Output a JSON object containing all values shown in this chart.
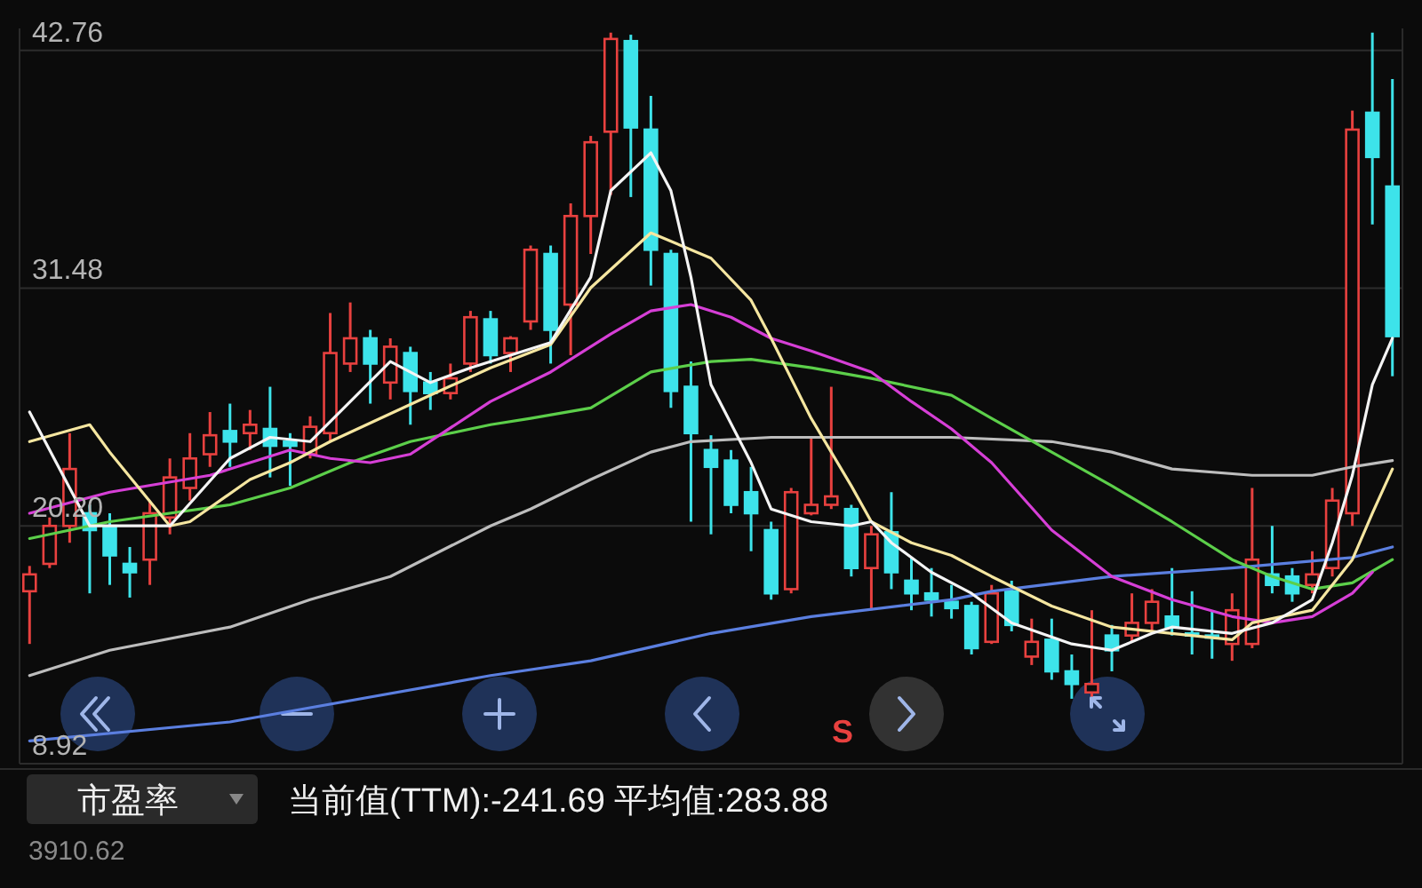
{
  "chart_data": {
    "type": "candlestick",
    "categories": [
      null,
      null,
      null,
      null,
      null,
      null,
      null,
      null,
      null,
      null,
      null,
      null,
      null,
      null,
      null,
      null,
      null,
      null,
      null,
      null,
      null,
      null,
      null,
      null,
      null,
      null,
      null,
      null,
      null,
      null,
      null,
      null,
      null,
      null,
      null,
      null,
      null,
      null,
      null,
      null,
      null,
      null,
      null,
      null,
      null,
      null,
      null,
      null,
      null,
      null,
      null,
      null,
      null,
      null,
      null,
      null,
      null,
      null,
      null,
      null,
      null,
      null,
      null,
      null,
      null,
      null,
      null,
      null,
      null
    ],
    "ohlc": [
      [
        17.1,
        18.3,
        14.6,
        17.9
      ],
      [
        18.4,
        20.6,
        18.2,
        20.2
      ],
      [
        20.2,
        24.6,
        19.4,
        22.9
      ],
      [
        20.8,
        21.2,
        17.0,
        20.0
      ],
      [
        20.2,
        20.8,
        17.4,
        18.8
      ],
      [
        18.4,
        19.2,
        16.8,
        18.0
      ],
      [
        18.6,
        21.4,
        17.4,
        20.8
      ],
      [
        20.6,
        23.4,
        19.8,
        22.5
      ],
      [
        22.0,
        24.6,
        21.4,
        23.4
      ],
      [
        23.6,
        25.6,
        23.0,
        24.5
      ],
      [
        24.7,
        26.0,
        23.0,
        24.2
      ],
      [
        24.6,
        25.7,
        23.8,
        25.0
      ],
      [
        24.8,
        26.8,
        22.5,
        24.0
      ],
      [
        24.2,
        24.6,
        22.1,
        24.0
      ],
      [
        23.6,
        25.4,
        23.4,
        24.9
      ],
      [
        24.6,
        30.3,
        24.2,
        28.4
      ],
      [
        27.9,
        30.8,
        27.5,
        29.1
      ],
      [
        29.1,
        29.5,
        26.0,
        27.9
      ],
      [
        27.0,
        29.1,
        26.2,
        28.7
      ],
      [
        28.4,
        28.7,
        25.0,
        26.6
      ],
      [
        27.0,
        27.5,
        25.7,
        26.5
      ],
      [
        26.5,
        27.9,
        26.2,
        27.2
      ],
      [
        27.9,
        30.4,
        27.5,
        30.1
      ],
      [
        30.0,
        30.4,
        27.9,
        28.3
      ],
      [
        28.4,
        29.2,
        27.5,
        29.1
      ],
      [
        29.9,
        33.5,
        29.5,
        33.3
      ],
      [
        33.1,
        33.5,
        27.9,
        29.5
      ],
      [
        30.7,
        35.5,
        28.3,
        34.9
      ],
      [
        34.9,
        38.7,
        33.1,
        38.4
      ],
      [
        38.9,
        43.6,
        35.9,
        43.3
      ],
      [
        43.2,
        43.5,
        35.8,
        39.1
      ],
      [
        39.0,
        40.6,
        31.6,
        33.3
      ],
      [
        33.1,
        33.3,
        25.8,
        26.6
      ],
      [
        26.8,
        28.0,
        20.4,
        24.6
      ],
      [
        23.8,
        24.5,
        19.8,
        23.0
      ],
      [
        23.3,
        23.8,
        20.8,
        21.2
      ],
      [
        21.8,
        23.0,
        19.0,
        20.8
      ],
      [
        20.0,
        20.4,
        16.7,
        17.0
      ],
      [
        17.2,
        22.0,
        17.0,
        21.8
      ],
      [
        20.8,
        24.4,
        20.7,
        21.2
      ],
      [
        21.2,
        26.8,
        21.0,
        21.6
      ],
      [
        21.0,
        21.2,
        17.8,
        18.2
      ],
      [
        18.2,
        20.2,
        16.2,
        19.8
      ],
      [
        19.9,
        21.8,
        17.2,
        18.0
      ],
      [
        17.6,
        18.7,
        16.2,
        17.0
      ],
      [
        17.0,
        18.2,
        15.9,
        16.7
      ],
      [
        16.6,
        17.4,
        15.8,
        16.3
      ],
      [
        16.4,
        16.6,
        14.1,
        14.4
      ],
      [
        14.7,
        17.4,
        14.6,
        17.0
      ],
      [
        17.1,
        17.6,
        15.2,
        15.5
      ],
      [
        14.0,
        15.8,
        13.6,
        14.7
      ],
      [
        14.8,
        15.8,
        12.9,
        13.3
      ],
      [
        13.3,
        14.1,
        12.0,
        12.7
      ],
      [
        12.3,
        16.2,
        12.1,
        12.7
      ],
      [
        15.0,
        15.5,
        13.3,
        14.3
      ],
      [
        15.0,
        17.0,
        14.7,
        15.6
      ],
      [
        15.6,
        17.2,
        15.2,
        16.6
      ],
      [
        15.9,
        18.2,
        15.0,
        15.4
      ],
      [
        15.1,
        17.1,
        14.1,
        15.0
      ],
      [
        15.0,
        16.2,
        13.9,
        14.9
      ],
      [
        14.6,
        17.0,
        13.8,
        16.2
      ],
      [
        14.6,
        22.0,
        14.4,
        18.6
      ],
      [
        17.9,
        20.2,
        17.0,
        17.4
      ],
      [
        17.8,
        18.2,
        16.6,
        17.0
      ],
      [
        17.4,
        19.0,
        17.0,
        17.9
      ],
      [
        18.2,
        22.0,
        17.8,
        21.4
      ],
      [
        20.8,
        39.9,
        20.2,
        39.0
      ],
      [
        39.8,
        43.6,
        34.5,
        37.7
      ],
      [
        36.3,
        41.4,
        27.3,
        29.2
      ]
    ],
    "colors": [
      "#e8413f",
      "#e8413f",
      "#e8413f",
      "#3de3ea",
      "#3de3ea",
      "#3de3ea",
      "#e8413f",
      "#e8413f",
      "#e8413f",
      "#e8413f",
      "#3de3ea",
      "#e8413f",
      "#3de3ea",
      "#3de3ea",
      "#e8413f",
      "#e8413f",
      "#e8413f",
      "#3de3ea",
      "#e8413f",
      "#3de3ea",
      "#3de3ea",
      "#e8413f",
      "#e8413f",
      "#3de3ea",
      "#e8413f",
      "#e8413f",
      "#3de3ea",
      "#e8413f",
      "#e8413f",
      "#e8413f",
      "#3de3ea",
      "#3de3ea",
      "#3de3ea",
      "#3de3ea",
      "#3de3ea",
      "#3de3ea",
      "#3de3ea",
      "#3de3ea",
      "#e8413f",
      "#e8413f",
      "#e8413f",
      "#3de3ea",
      "#e8413f",
      "#3de3ea",
      "#3de3ea",
      "#3de3ea",
      "#3de3ea",
      "#3de3ea",
      "#e8413f",
      "#3de3ea",
      "#e8413f",
      "#3de3ea",
      "#3de3ea",
      "#e8413f",
      "#3de3ea",
      "#e8413f",
      "#e8413f",
      "#3de3ea",
      "#3de3ea",
      "#3de3ea",
      "#e8413f",
      "#e8413f",
      "#3de3ea",
      "#3de3ea",
      "#e8413f",
      "#e8413f",
      "#e8413f",
      "#3de3ea",
      "#3de3ea"
    ],
    "ylim": [
      8.92,
      43.8
    ],
    "yticks": [
      42.76,
      31.48,
      {
        "value": 20.2,
        "label": "20.20"
      },
      8.92
    ],
    "grid": "y",
    "series": [
      {
        "type": "line",
        "color": "#bdbdbd",
        "values": [
          13.1,
          null,
          null,
          null,
          14.3,
          null,
          null,
          null,
          null,
          null,
          15.4,
          null,
          null,
          null,
          16.7,
          null,
          null,
          null,
          17.8,
          null,
          null,
          null,
          null,
          20.2,
          null,
          21.0,
          null,
          null,
          22.4,
          null,
          null,
          23.7,
          null,
          24.2,
          null,
          null,
          null,
          24.4,
          null,
          null,
          null,
          24.4,
          null,
          null,
          null,
          null,
          24.4,
          null,
          null,
          null,
          null,
          24.2,
          null,
          null,
          23.7,
          null,
          null,
          22.9,
          null,
          null,
          null,
          22.6,
          null,
          null,
          22.6,
          null,
          23.0,
          null,
          23.3
        ]
      },
      {
        "type": "line",
        "color": "#5b7fe0",
        "values": [
          10.0,
          null,
          null,
          null,
          null,
          null,
          null,
          null,
          null,
          null,
          10.9,
          null,
          null,
          null,
          null,
          null,
          null,
          null,
          null,
          null,
          null,
          null,
          null,
          13.1,
          null,
          null,
          null,
          null,
          13.8,
          null,
          null,
          null,
          null,
          null,
          15.1,
          null,
          null,
          null,
          null,
          15.9,
          null,
          null,
          null,
          null,
          null,
          null,
          16.7,
          null,
          17.1,
          null,
          null,
          null,
          null,
          null,
          17.8,
          null,
          null,
          null,
          null,
          null,
          18.2,
          null,
          null,
          null,
          null,
          null,
          18.7,
          null,
          19.2
        ]
      },
      {
        "type": "line",
        "color": "#5ccf4a",
        "values": [
          19.6,
          null,
          null,
          null,
          20.4,
          null,
          null,
          null,
          null,
          null,
          21.2,
          null,
          null,
          22.0,
          null,
          null,
          23.2,
          null,
          null,
          24.2,
          null,
          null,
          null,
          25.0,
          null,
          25.3,
          null,
          null,
          25.8,
          null,
          null,
          27.5,
          null,
          null,
          28.0,
          null,
          28.1,
          null,
          null,
          27.7,
          null,
          null,
          27.2,
          null,
          null,
          null,
          26.4,
          null,
          25.3,
          null,
          null,
          23.7,
          null,
          null,
          22.1,
          null,
          null,
          20.4,
          null,
          null,
          18.6,
          null,
          17.8,
          null,
          17.2,
          null,
          17.5,
          null,
          18.6
        ]
      },
      {
        "type": "line",
        "color": "#d63fd6",
        "values": [
          20.8,
          null,
          null,
          null,
          21.8,
          null,
          null,
          null,
          null,
          22.6,
          null,
          null,
          null,
          23.8,
          null,
          23.4,
          null,
          23.2,
          null,
          23.6,
          null,
          null,
          null,
          26.1,
          null,
          null,
          27.5,
          null,
          null,
          29.3,
          null,
          30.4,
          null,
          30.7,
          null,
          30.1,
          null,
          29.1,
          null,
          28.5,
          null,
          null,
          27.5,
          null,
          26.1,
          null,
          24.8,
          null,
          23.2,
          null,
          null,
          20.0,
          null,
          null,
          17.8,
          null,
          null,
          16.7,
          null,
          null,
          15.9,
          null,
          15.6,
          null,
          15.9,
          null,
          17.0,
          18.0,
          null
        ]
      },
      {
        "type": "line",
        "color": "#f5e6a0",
        "values": [
          24.2,
          null,
          null,
          25.0,
          23.7,
          null,
          null,
          20.2,
          20.4,
          null,
          null,
          22.4,
          null,
          23.2,
          null,
          24.2,
          null,
          null,
          null,
          null,
          26.4,
          null,
          null,
          27.7,
          null,
          null,
          28.8,
          null,
          31.5,
          null,
          null,
          34.1,
          null,
          null,
          32.9,
          null,
          30.9,
          29.1,
          null,
          25.3,
          null,
          22.1,
          20.4,
          null,
          19.4,
          null,
          18.8,
          null,
          17.8,
          null,
          null,
          16.4,
          null,
          null,
          15.4,
          null,
          null,
          15.1,
          null,
          null,
          14.8,
          15.6,
          null,
          null,
          16.2,
          null,
          18.6,
          20.8,
          22.9
        ]
      },
      {
        "type": "line",
        "color": "#f4f4f4",
        "values": [
          25.6,
          null,
          null,
          20.2,
          null,
          null,
          null,
          20.2,
          null,
          null,
          23.4,
          null,
          24.4,
          null,
          24.2,
          null,
          null,
          null,
          28.0,
          null,
          27.0,
          null,
          27.7,
          null,
          null,
          null,
          28.9,
          null,
          32.0,
          36.1,
          null,
          37.9,
          36.1,
          32.0,
          26.9,
          null,
          23.2,
          21.0,
          null,
          20.4,
          null,
          20.2,
          20.4,
          19.4,
          null,
          18.0,
          null,
          17.0,
          null,
          15.6,
          null,
          null,
          14.6,
          null,
          14.3,
          null,
          15.1,
          15.4,
          null,
          null,
          15.1,
          null,
          15.6,
          null,
          16.7,
          19.4,
          22.6,
          26.9,
          29.1
        ]
      }
    ],
    "annotations": [
      "S",
      "市盈率",
      "当前值(TTM):-241.69 平均值:283.88",
      "3910.62"
    ]
  }
}
